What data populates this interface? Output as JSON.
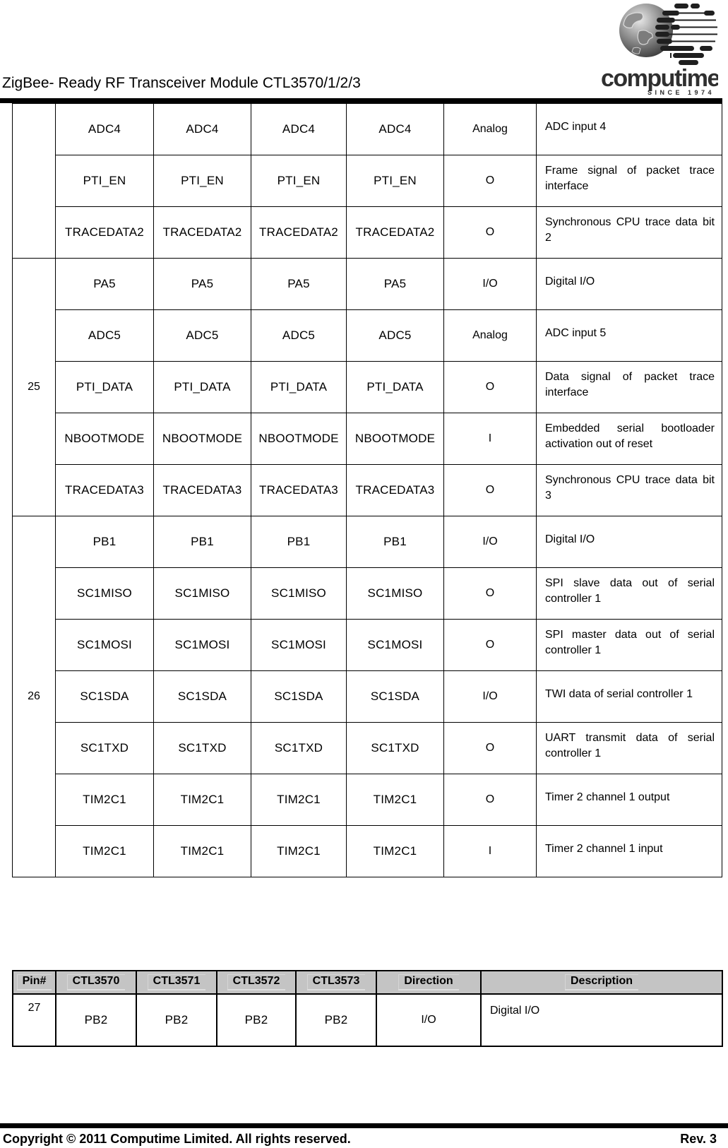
{
  "page": {
    "title": "ZigBee- Ready RF Transceiver Module CTL3570/1/2/3"
  },
  "logo": {
    "brand": "computime",
    "tagline": "SINCE 1974"
  },
  "pin_table_continued": {
    "groups": [
      {
        "pin": "",
        "rows": [
          {
            "signals": [
              "ADC4",
              "ADC4",
              "ADC4",
              "ADC4"
            ],
            "direction": "Analog",
            "description": "ADC input 4"
          },
          {
            "signals": [
              "PTI_EN",
              "PTI_EN",
              "PTI_EN",
              "PTI_EN"
            ],
            "direction": "O",
            "description": "Frame signal of packet trace interface"
          },
          {
            "signals": [
              "TRACEDATA2",
              "TRACEDATA2",
              "TRACEDATA2",
              "TRACEDATA2"
            ],
            "direction": "O",
            "description": "Synchronous CPU trace data bit 2"
          }
        ]
      },
      {
        "pin": "25",
        "rows": [
          {
            "signals": [
              "PA5",
              "PA5",
              "PA5",
              "PA5"
            ],
            "direction": "I/O",
            "description": "Digital I/O"
          },
          {
            "signals": [
              "ADC5",
              "ADC5",
              "ADC5",
              "ADC5"
            ],
            "direction": "Analog",
            "description": "ADC input 5"
          },
          {
            "signals": [
              "PTI_DATA",
              "PTI_DATA",
              "PTI_DATA",
              "PTI_DATA"
            ],
            "direction": "O",
            "description": "Data signal of packet trace interface"
          },
          {
            "signals": [
              "NBOOTMODE",
              "NBOOTMODE",
              "NBOOTMODE",
              "NBOOTMODE"
            ],
            "direction": "I",
            "description": "Embedded serial bootloader activation out of reset"
          },
          {
            "signals": [
              "TRACEDATA3",
              "TRACEDATA3",
              "TRACEDATA3",
              "TRACEDATA3"
            ],
            "direction": "O",
            "description": "Synchronous CPU trace data bit 3"
          }
        ]
      },
      {
        "pin": "26",
        "rows": [
          {
            "signals": [
              "PB1",
              "PB1",
              "PB1",
              "PB1"
            ],
            "direction": "I/O",
            "description": "Digital I/O"
          },
          {
            "signals": [
              "SC1MISO",
              "SC1MISO",
              "SC1MISO",
              "SC1MISO"
            ],
            "direction": "O",
            "description": "SPI slave data out of serial controller 1"
          },
          {
            "signals": [
              "SC1MOSI",
              "SC1MOSI",
              "SC1MOSI",
              "SC1MOSI"
            ],
            "direction": "O",
            "description": "SPI master data out of serial controller 1"
          },
          {
            "signals": [
              "SC1SDA",
              "SC1SDA",
              "SC1SDA",
              "SC1SDA"
            ],
            "direction": "I/O",
            "description": "TWI data of serial controller 1"
          },
          {
            "signals": [
              "SC1TXD",
              "SC1TXD",
              "SC1TXD",
              "SC1TXD"
            ],
            "direction": "O",
            "description": "UART transmit data of serial controller 1"
          },
          {
            "signals": [
              "TIM2C1",
              "TIM2C1",
              "TIM2C1",
              "TIM2C1"
            ],
            "direction": "O",
            "description": "Timer 2 channel 1 output"
          },
          {
            "signals": [
              "TIM2C1",
              "TIM2C1",
              "TIM2C1",
              "TIM2C1"
            ],
            "direction": "I",
            "description": "Timer 2 channel 1 input"
          }
        ]
      }
    ]
  },
  "pin_table_new": {
    "headers": [
      "Pin#",
      "CTL3570",
      "CTL3571",
      "CTL3572",
      "CTL3573",
      "Direction",
      "Description"
    ],
    "groups": [
      {
        "pin": "27",
        "rows": [
          {
            "signals": [
              "PB2",
              "PB2",
              "PB2",
              "PB2"
            ],
            "direction": "I/O",
            "description": "Digital I/O"
          }
        ]
      }
    ]
  },
  "footer": {
    "copyright": "Copyright © 2011 Computime Limited. All rights reserved.",
    "revision": "Rev. 3"
  },
  "colors": {
    "table_header_bg": "#c4c4c4",
    "rule": "#000000"
  }
}
